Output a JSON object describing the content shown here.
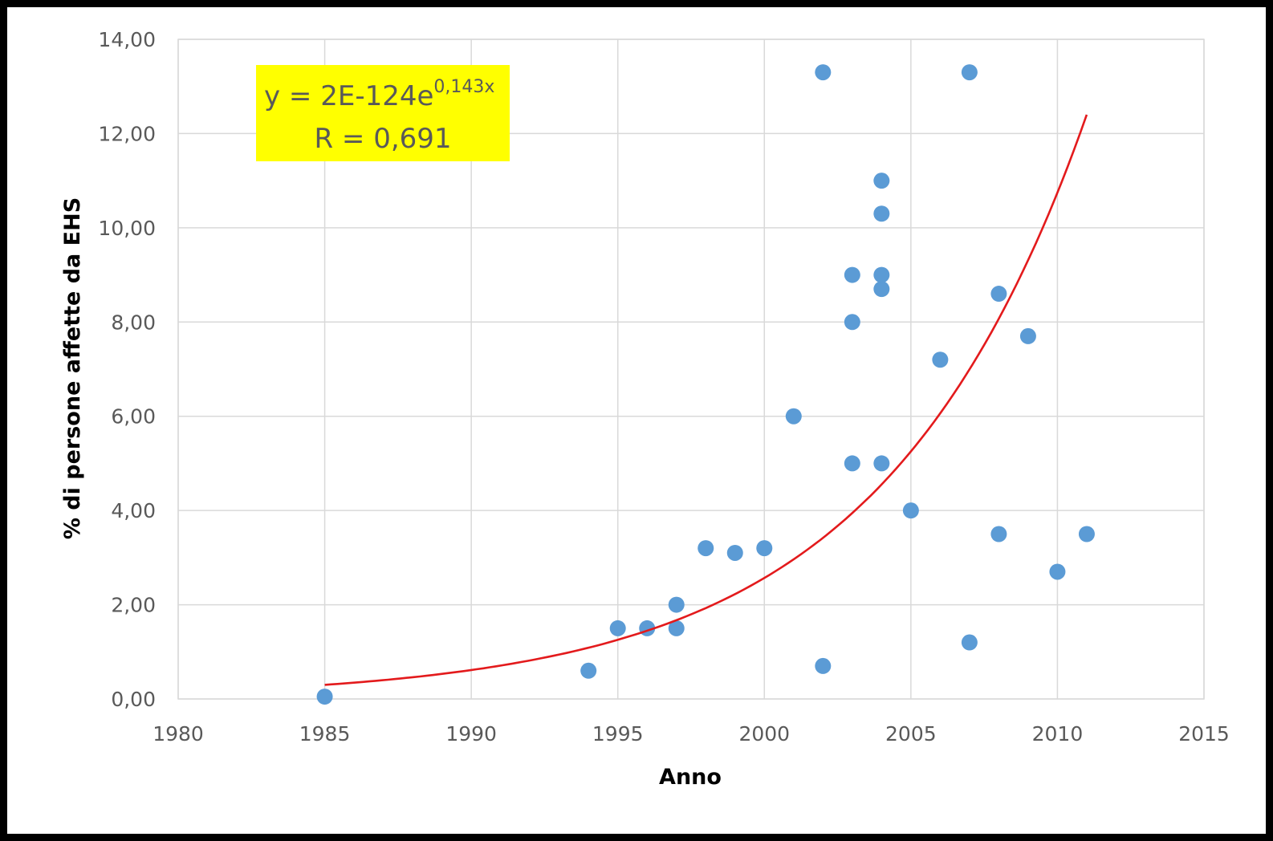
{
  "chart_data": {
    "type": "scatter",
    "xlabel": "Anno",
    "ylabel": "% di persone affette da EHS",
    "xlim": [
      1980,
      2015
    ],
    "ylim": [
      0,
      14
    ],
    "x_ticks": [
      1980,
      1985,
      1990,
      1995,
      2000,
      2005,
      2010,
      2015
    ],
    "x_tick_labels": [
      "1980",
      "1985",
      "1990",
      "1995",
      "2000",
      "2005",
      "2010",
      "2015"
    ],
    "y_ticks": [
      0,
      2,
      4,
      6,
      8,
      10,
      12,
      14
    ],
    "y_tick_labels": [
      "0,00",
      "2,00",
      "4,00",
      "6,00",
      "8,00",
      "10,00",
      "12,00",
      "14,00"
    ],
    "grid": true,
    "series": [
      {
        "marker_color": "#5B9BD5",
        "points": [
          {
            "x": 1985,
            "y": 0.05
          },
          {
            "x": 1994,
            "y": 0.6
          },
          {
            "x": 1995,
            "y": 1.5
          },
          {
            "x": 1996,
            "y": 1.5
          },
          {
            "x": 1997,
            "y": 1.5
          },
          {
            "x": 1997,
            "y": 2.0
          },
          {
            "x": 1998,
            "y": 3.2
          },
          {
            "x": 1999,
            "y": 3.1
          },
          {
            "x": 2000,
            "y": 3.2
          },
          {
            "x": 2001,
            "y": 6.0
          },
          {
            "x": 2002,
            "y": 0.7
          },
          {
            "x": 2002,
            "y": 13.3
          },
          {
            "x": 2003,
            "y": 5.0
          },
          {
            "x": 2003,
            "y": 8.0
          },
          {
            "x": 2003,
            "y": 9.0
          },
          {
            "x": 2004,
            "y": 5.0
          },
          {
            "x": 2004,
            "y": 8.7
          },
          {
            "x": 2004,
            "y": 9.0
          },
          {
            "x": 2004,
            "y": 10.3
          },
          {
            "x": 2004,
            "y": 11.0
          },
          {
            "x": 2005,
            "y": 4.0
          },
          {
            "x": 2006,
            "y": 7.2
          },
          {
            "x": 2007,
            "y": 1.2
          },
          {
            "x": 2007,
            "y": 13.3
          },
          {
            "x": 2008,
            "y": 3.5
          },
          {
            "x": 2008,
            "y": 8.6
          },
          {
            "x": 2009,
            "y": 7.7
          },
          {
            "x": 2010,
            "y": 2.7
          },
          {
            "x": 2011,
            "y": 3.5
          }
        ]
      }
    ],
    "trendline": {
      "type": "exponential",
      "color": "#E31A1C",
      "x_range": [
        1985,
        2011
      ],
      "y_start": 0.3,
      "y_end": 12.4
    },
    "annotation": {
      "equation_prefix": "y = 2E-124e",
      "equation_exponent": "0,143x",
      "r_text": "R = 0,691",
      "background": "#FFFF00"
    }
  }
}
